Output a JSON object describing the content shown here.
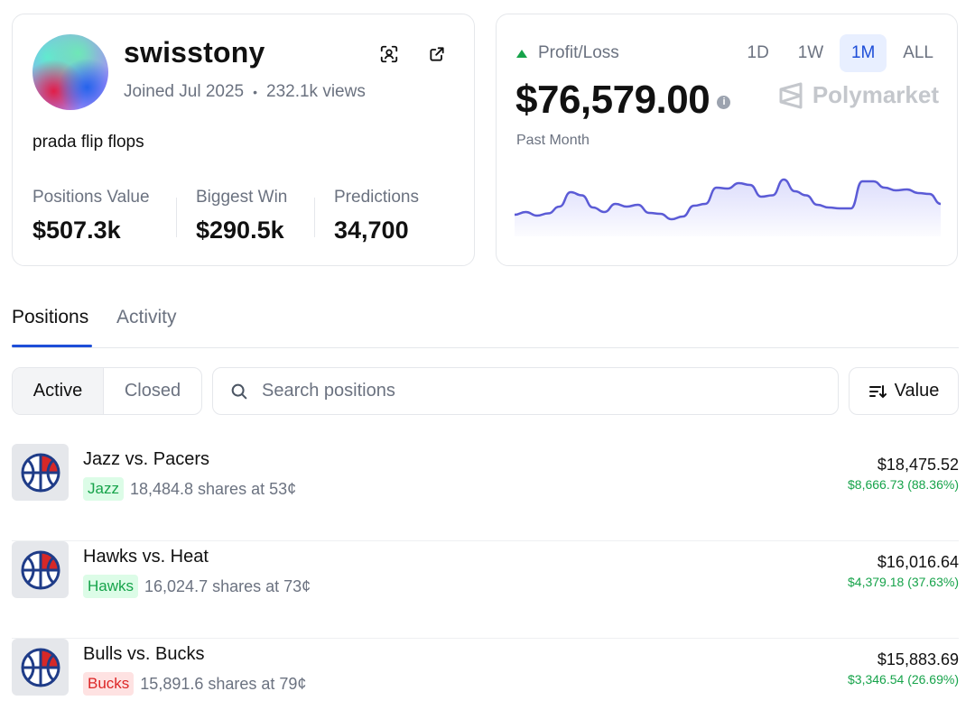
{
  "profile": {
    "username": "swisstony",
    "joined": "Joined Jul 2025",
    "views": "232.1k views",
    "bio": "prada flip flops",
    "stats": [
      {
        "label": "Positions Value",
        "value": "$507.3k"
      },
      {
        "label": "Biggest Win",
        "value": "$290.5k"
      },
      {
        "label": "Predictions",
        "value": "34,700"
      }
    ]
  },
  "pnl": {
    "label": "Profit/Loss",
    "value": "$76,579.00",
    "info_icon": "i",
    "brand": "Polymarket",
    "period_label": "Past Month",
    "ranges": [
      "1D",
      "1W",
      "1M",
      "ALL"
    ],
    "active_range": "1M",
    "sparkline": [
      0.12,
      0.18,
      0.1,
      0.15,
      0.3,
      0.62,
      0.55,
      0.28,
      0.18,
      0.36,
      0.3,
      0.34,
      0.16,
      0.14,
      0.02,
      0.08,
      0.32,
      0.36,
      0.72,
      0.7,
      0.82,
      0.78,
      0.52,
      0.55,
      0.9,
      0.64,
      0.55,
      0.34,
      0.28,
      0.26,
      0.26,
      0.86,
      0.86,
      0.72,
      0.66,
      0.68,
      0.6,
      0.58,
      0.36
    ],
    "up_color": "#16a34a",
    "line_color": "#5b5bd6"
  },
  "tabs": [
    "Positions",
    "Activity"
  ],
  "filters": {
    "active": "Active",
    "closed": "Closed",
    "search_placeholder": "Search positions",
    "sort_label": "Value"
  },
  "positions": [
    {
      "title": "Jazz vs. Pacers",
      "outcome": "Jazz",
      "outcome_color": "green",
      "shares": "18,484.8 shares at 53¢",
      "value": "$18,475.52",
      "change": "$8,666.73 (88.36%)"
    },
    {
      "title": "Hawks vs. Heat",
      "outcome": "Hawks",
      "outcome_color": "green",
      "shares": "16,024.7 shares at 73¢",
      "value": "$16,016.64",
      "change": "$4,379.18 (37.63%)"
    },
    {
      "title": "Bulls vs. Bucks",
      "outcome": "Bucks",
      "outcome_color": "red",
      "shares": "15,891.6 shares at 79¢",
      "value": "$15,883.69",
      "change": "$3,346.54 (26.69%)"
    }
  ]
}
